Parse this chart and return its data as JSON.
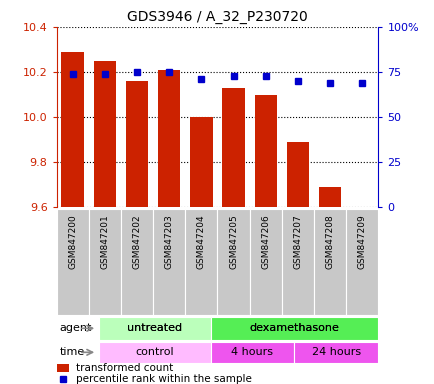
{
  "title": "GDS3946 / A_32_P230720",
  "samples": [
    "GSM847200",
    "GSM847201",
    "GSM847202",
    "GSM847203",
    "GSM847204",
    "GSM847205",
    "GSM847206",
    "GSM847207",
    "GSM847208",
    "GSM847209"
  ],
  "transformed_count": [
    10.29,
    10.25,
    10.16,
    10.21,
    10.0,
    10.13,
    10.1,
    9.89,
    9.69,
    9.6
  ],
  "percentile_rank": [
    74,
    74,
    75,
    75,
    71,
    73,
    73,
    70,
    69,
    69
  ],
  "ylim_left": [
    9.6,
    10.4
  ],
  "ylim_right": [
    0,
    100
  ],
  "yticks_left": [
    9.6,
    9.8,
    10.0,
    10.2,
    10.4
  ],
  "yticks_right": [
    0,
    25,
    50,
    75,
    100
  ],
  "yticklabels_right": [
    "0",
    "25",
    "50",
    "75",
    "100%"
  ],
  "bar_color": "#cc2200",
  "dot_color": "#0000cc",
  "agent_untreated_label": "untreated",
  "agent_dexamethasone_label": "dexamethasone",
  "time_control_label": "control",
  "time_4h_label": "4 hours",
  "time_24h_label": "24 hours",
  "legend_red_label": "transformed count",
  "legend_blue_label": "percentile rank within the sample",
  "agent_bg_untreated": "#bbffbb",
  "agent_bg_dexamethasone": "#55ee55",
  "time_bg_control": "#ffbbff",
  "time_bg_4h": "#ee55ee",
  "time_bg_24h": "#ee55ee",
  "left_axis_color": "#cc2200",
  "right_axis_color": "#0000cc",
  "grid_color": "#000000",
  "bar_bottom": 9.6,
  "bar_width": 0.7,
  "tick_label_bg": "#c8c8c8",
  "n_untreated": 4,
  "n_4h": 3,
  "n_24h": 3
}
